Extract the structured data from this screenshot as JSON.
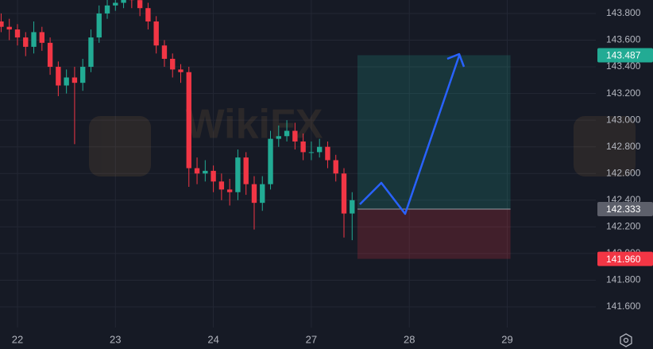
{
  "chart_data": {
    "type": "candlestick",
    "watermark": "WikiFX",
    "up_color": "#22ab94",
    "down_color": "#f23645",
    "x": [
      -4,
      -2,
      0,
      2,
      4,
      6,
      8,
      10,
      12,
      14,
      16,
      18,
      20,
      22,
      24,
      26,
      28,
      30,
      32,
      34,
      36,
      38,
      40,
      42,
      44,
      46,
      48,
      50,
      52,
      54,
      56,
      58,
      60,
      62,
      64,
      66,
      68,
      70,
      72,
      74,
      76,
      78,
      80,
      82
    ],
    "open": [
      143.74,
      143.7,
      143.68,
      143.62,
      143.55,
      143.66,
      143.58,
      143.4,
      143.26,
      143.32,
      143.28,
      143.4,
      143.62,
      143.8,
      143.86,
      143.88,
      143.92,
      143.9,
      143.84,
      143.74,
      143.56,
      143.46,
      143.38,
      143.36,
      142.64,
      142.6,
      142.62,
      142.54,
      142.48,
      142.46,
      142.72,
      142.52,
      142.38,
      142.52,
      142.86,
      142.88,
      142.92,
      142.84,
      142.76,
      142.76,
      142.8,
      142.7,
      142.6,
      142.3
    ],
    "high": [
      143.8,
      143.76,
      143.72,
      143.66,
      143.74,
      143.7,
      143.62,
      143.44,
      143.38,
      143.4,
      143.46,
      143.68,
      143.86,
      143.92,
      143.94,
      143.98,
      143.96,
      143.94,
      143.88,
      143.78,
      143.6,
      143.5,
      143.42,
      143.4,
      142.72,
      142.7,
      142.66,
      142.6,
      142.56,
      142.78,
      142.76,
      142.58,
      142.58,
      142.92,
      142.96,
      143.0,
      142.98,
      142.9,
      142.84,
      142.86,
      142.84,
      142.74,
      142.64,
      142.46
    ],
    "low": [
      143.66,
      143.6,
      143.56,
      143.48,
      143.5,
      143.52,
      143.34,
      143.18,
      143.2,
      142.82,
      143.22,
      143.36,
      143.58,
      143.76,
      143.82,
      143.84,
      143.84,
      143.78,
      143.68,
      143.5,
      143.4,
      143.32,
      143.28,
      142.5,
      142.52,
      142.54,
      142.46,
      142.4,
      142.36,
      142.4,
      142.44,
      142.18,
      142.32,
      142.48,
      142.8,
      142.84,
      142.78,
      142.7,
      142.7,
      142.72,
      142.64,
      142.54,
      142.12,
      142.1
    ],
    "close": [
      143.7,
      143.68,
      143.62,
      143.55,
      143.66,
      143.58,
      143.4,
      143.26,
      143.32,
      143.28,
      143.4,
      143.62,
      143.8,
      143.86,
      143.88,
      143.92,
      143.9,
      143.84,
      143.74,
      143.56,
      143.46,
      143.38,
      143.36,
      142.64,
      142.6,
      142.62,
      142.54,
      142.48,
      142.46,
      142.72,
      142.52,
      142.38,
      142.52,
      142.86,
      142.88,
      142.92,
      142.84,
      142.76,
      142.76,
      142.8,
      142.7,
      142.6,
      142.3,
      142.4
    ],
    "xlim": [
      -4.28,
      141.7
    ],
    "xticks": [
      {
        "value": 0,
        "label": "22"
      },
      {
        "value": 24,
        "label": "23"
      },
      {
        "value": 48,
        "label": "24"
      },
      {
        "value": 72,
        "label": "27"
      },
      {
        "value": 96,
        "label": "28"
      },
      {
        "value": 120,
        "label": "29"
      }
    ],
    "ylim": [
      141.445,
      143.901
    ],
    "yticks": [
      {
        "value": 141.6,
        "label": "141.600"
      },
      {
        "value": 141.8,
        "label": "141.800"
      },
      {
        "value": 142.0,
        "label": "142.000"
      },
      {
        "value": 142.2,
        "label": "142.200"
      },
      {
        "value": 142.4,
        "label": "142.400"
      },
      {
        "value": 142.6,
        "label": "142.600"
      },
      {
        "value": 142.8,
        "label": "142.800"
      },
      {
        "value": 143.0,
        "label": "143.000"
      },
      {
        "value": 143.2,
        "label": "143.200"
      },
      {
        "value": 143.4,
        "label": "143.400"
      },
      {
        "value": 143.6,
        "label": "143.600"
      },
      {
        "value": 143.8,
        "label": "143.800"
      }
    ],
    "grid": true,
    "position": {
      "start": 83.3,
      "end": 120.8,
      "target": {
        "value": 143.487,
        "label": "143.487",
        "color": "#22ab94"
      },
      "entry": {
        "value": 142.333,
        "label": "142.333",
        "color": "#5d606b"
      },
      "stop": {
        "value": 141.96,
        "label": "141.960",
        "color": "#f23645"
      }
    }
  }
}
